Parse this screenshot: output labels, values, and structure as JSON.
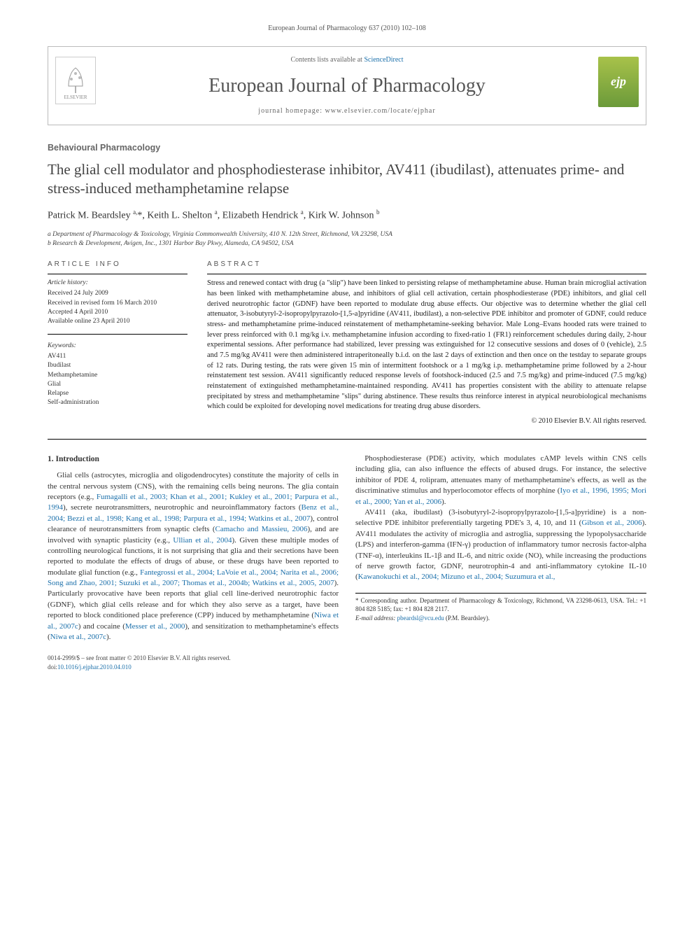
{
  "running_head": "European Journal of Pharmacology 637 (2010) 102–108",
  "masthead": {
    "contents_prefix": "Contents lists available at ",
    "contents_link": "ScienceDirect",
    "journal_name": "European Journal of Pharmacology",
    "homepage_prefix": "journal homepage: ",
    "homepage_url": "www.elsevier.com/locate/ejphar",
    "publisher_label": "ELSEVIER",
    "badge_label": "ejp"
  },
  "section_label": "Behavioural Pharmacology",
  "title": "The glial cell modulator and phosphodiesterase inhibitor, AV411 (ibudilast), attenuates prime- and stress-induced methamphetamine relapse",
  "authors_html": "Patrick M. Beardsley <sup>a,</sup>*, Keith L. Shelton <sup>a</sup>, Elizabeth Hendrick <sup>a</sup>, Kirk W. Johnson <sup>b</sup>",
  "affiliations": {
    "a": "a Department of Pharmacology & Toxicology, Virginia Commonwealth University, 410 N. 12th Street, Richmond, VA 23298, USA",
    "b": "b Research & Development, Avigen, Inc., 1301 Harbor Bay Pkwy, Alameda, CA 94502, USA"
  },
  "article_info": {
    "heading": "article info",
    "history_label": "Article history:",
    "history": [
      "Received 24 July 2009",
      "Received in revised form 16 March 2010",
      "Accepted 4 April 2010",
      "Available online 23 April 2010"
    ],
    "keywords_label": "Keywords:",
    "keywords": [
      "AV411",
      "Ibudilast",
      "Methamphetamine",
      "Glial",
      "Relapse",
      "Self-administration"
    ]
  },
  "abstract": {
    "heading": "abstract",
    "text": "Stress and renewed contact with drug (a \"slip\") have been linked to persisting relapse of methamphetamine abuse. Human brain microglial activation has been linked with methamphetamine abuse, and inhibitors of glial cell activation, certain phosphodiesterase (PDE) inhibitors, and glial cell derived neurotrophic factor (GDNF) have been reported to modulate drug abuse effects. Our objective was to determine whether the glial cell attenuator, 3-isobutyryl-2-isopropylpyrazolo-[1,5-a]pyridine (AV411, ibudilast), a non-selective PDE inhibitor and promoter of GDNF, could reduce stress- and methamphetamine prime-induced reinstatement of methamphetamine-seeking behavior. Male Long–Evans hooded rats were trained to lever press reinforced with 0.1 mg/kg i.v. methamphetamine infusion according to fixed-ratio 1 (FR1) reinforcement schedules during daily, 2-hour experimental sessions. After performance had stabilized, lever pressing was extinguished for 12 consecutive sessions and doses of 0 (vehicle), 2.5 and 7.5 mg/kg AV411 were then administered intraperitoneally b.i.d. on the last 2 days of extinction and then once on the testday to separate groups of 12 rats. During testing, the rats were given 15 min of intermittent footshock or a 1 mg/kg i.p. methamphetamine prime followed by a 2-hour reinstatement test session. AV411 significantly reduced response levels of footshock-induced (2.5 and 7.5 mg/kg) and prime-induced (7.5 mg/kg) reinstatement of extinguished methamphetamine-maintained responding. AV411 has properties consistent with the ability to attenuate relapse precipitated by stress and methamphetamine \"slips\" during abstinence. These results thus reinforce interest in atypical neurobiological mechanisms which could be exploited for developing novel medications for treating drug abuse disorders.",
    "copyright": "© 2010 Elsevier B.V. All rights reserved."
  },
  "body": {
    "intro_head": "1. Introduction",
    "p1_a": "Glial cells (astrocytes, microglia and oligodendrocytes) constitute the majority of cells in the central nervous system (CNS), with the remaining cells being neurons. The glia contain receptors (e.g., ",
    "c1": "Fumagalli et al., 2003; Khan et al., 2001; Kukley et al., 2001; Parpura et al., 1994",
    "p1_b": "), secrete neurotransmitters, neurotrophic and neuroinflammatory factors (",
    "c2": "Benz et al., 2004; Bezzi et al., 1998; Kang et al., 1998; Parpura et al., 1994; Watkins et al., 2007",
    "p1_c": "), control clearance of neurotransmitters from synaptic clefts (",
    "c3": "Camacho and Massieu, 2006",
    "p1_d": "), and are involved with synaptic plasticity (e.g., ",
    "c4": "Ullian et al., 2004",
    "p1_e": "). Given these multiple modes of controlling neurological functions, it is not surprising that glia and their secretions have been reported to modulate the effects of drugs of abuse, or these drugs have been reported to modulate glial function (e.g., ",
    "c5": "Fantegrossi et al., 2004; LaVoie et al., 2004; Narita et al., 2006; Song and Zhao, 2001; Suzuki et al., 2007; Thomas et al., 2004b; Watkins et al., 2005, 2007",
    "p1_f": "). ",
    "p2_a": "Particularly provocative have been reports that glial cell line-derived neurotrophic factor (GDNF), which glial cells release and for which they also serve as a target, have been reported to block conditioned place preference (CPP) induced by methamphetamine (",
    "c6": "Niwa et al., 2007c",
    "p2_b": ") and cocaine (",
    "c7": "Messer et al., 2000",
    "p2_c": "), and sensitization to methamphetamine's effects (",
    "c8": "Niwa et al., 2007c",
    "p2_d": ").",
    "p3_a": "Phosphodiesterase (PDE) activity, which modulates cAMP levels within CNS cells including glia, can also influence the effects of abused drugs. For instance, the selective inhibitor of PDE 4, rolipram, attenuates many of methamphetamine's effects, as well as the discriminative stimulus and hyperlocomotor effects of morphine (",
    "c9": "Iyo et al., 1996, 1995; Mori et al., 2000; Yan et al., 2006",
    "p3_b": ").",
    "p4_a": "AV411 (aka, ibudilast) (3-isobutyryl-2-isopropylpyrazolo-[1,5-a]pyridine) is a non-selective PDE inhibitor preferentially targeting PDE's 3, 4, 10, and 11 (",
    "c10": "Gibson et al., 2006",
    "p4_b": "). AV411 modulates the activity of microglia and astroglia, suppressing the lypopolysaccharide (LPS) and interferon-gamma (IFN-γ) production of inflammatory tumor necrosis factor-alpha (TNF-α), interleukins IL-1β and IL-6, and nitric oxide (NO), while increasing the productions of nerve growth factor, GDNF, neurotrophin-4 and anti-inflammatory cytokine IL-10 (",
    "c11": "Kawanokuchi et al., 2004; Mizuno et al., 2004; Suzumura et al.,"
  },
  "footnote": {
    "corr": "* Corresponding author. Department of Pharmacology & Toxicology, Richmond, VA 23298-0613, USA. Tel.: +1 804 828 5185; fax: +1 804 828 2117.",
    "email_label": "E-mail address: ",
    "email": "pbeardsl@vcu.edu",
    "email_suffix": " (P.M. Beardsley)."
  },
  "footer": {
    "left": "0014-2999/$ – see front matter © 2010 Elsevier B.V. All rights reserved.",
    "doi_prefix": "doi:",
    "doi": "10.1016/j.ejphar.2010.04.010"
  },
  "colors": {
    "link": "#1a6faa",
    "text": "#333333",
    "muted": "#666666",
    "badge_top": "#a8c24a",
    "badge_bottom": "#6b9a3a",
    "border": "#bbbbbb"
  }
}
